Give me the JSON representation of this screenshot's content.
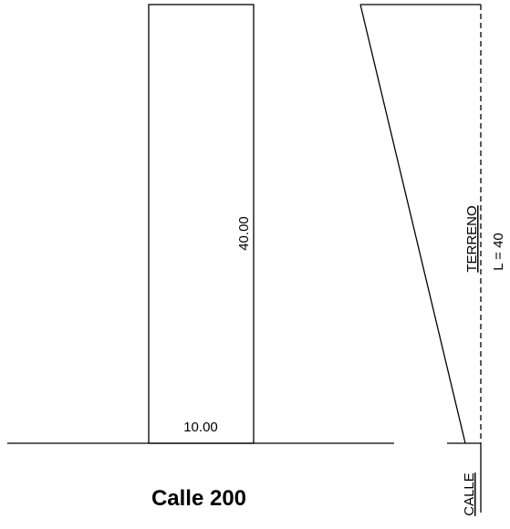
{
  "dimensions": {
    "height": "40.00",
    "width": "10.00"
  },
  "street_label": "Calle 200",
  "side": {
    "terreno": "TERRENO",
    "length": "L = 40",
    "calle": "CALLE"
  }
}
